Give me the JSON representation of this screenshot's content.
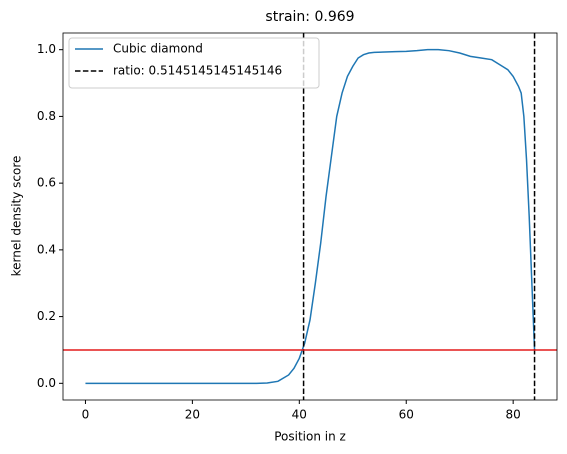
{
  "chart_data": {
    "type": "line",
    "title": "strain: 0.969",
    "xlabel": "Position in z",
    "ylabel": "kernel density score",
    "x": [
      0,
      4,
      8,
      12,
      16,
      20,
      24,
      28,
      32,
      34,
      36,
      38,
      39,
      40,
      41,
      42,
      43,
      44,
      45,
      46,
      47,
      48,
      49,
      50,
      51,
      52,
      53,
      54,
      56,
      58,
      60,
      62,
      64,
      66,
      68,
      70,
      72,
      74,
      76,
      78,
      79,
      80,
      81,
      81.5,
      82,
      82.5,
      83,
      83.5,
      84
    ],
    "series": [
      {
        "name": "Cubic diamond",
        "color": "#1f77b4",
        "values": [
          0,
          0,
          0,
          0,
          0,
          0,
          0,
          0,
          0,
          0.001,
          0.006,
          0.025,
          0.045,
          0.075,
          0.12,
          0.19,
          0.3,
          0.42,
          0.56,
          0.68,
          0.8,
          0.87,
          0.92,
          0.95,
          0.975,
          0.985,
          0.99,
          0.992,
          0.993,
          0.994,
          0.995,
          0.997,
          1.0,
          1.0,
          0.997,
          0.99,
          0.98,
          0.975,
          0.97,
          0.95,
          0.94,
          0.92,
          0.89,
          0.87,
          0.8,
          0.67,
          0.5,
          0.3,
          0.1
        ]
      }
    ],
    "vlines": {
      "name": "ratio: 0.5145145145145146",
      "x": [
        40.8,
        84
      ],
      "color": "#000000"
    },
    "hline": {
      "y": 0.1,
      "color": "#e41a1c"
    },
    "xlim": [
      -4.2,
      88.2
    ],
    "ylim": [
      -0.05,
      1.05
    ],
    "xticks": [
      0,
      20,
      40,
      60,
      80
    ],
    "yticks": [
      {
        "value": 0,
        "label": "0.0"
      },
      0.2,
      0.4,
      0.6,
      0.8,
      {
        "value": 1,
        "label": "1.0"
      }
    ],
    "legend": "upper left"
  }
}
